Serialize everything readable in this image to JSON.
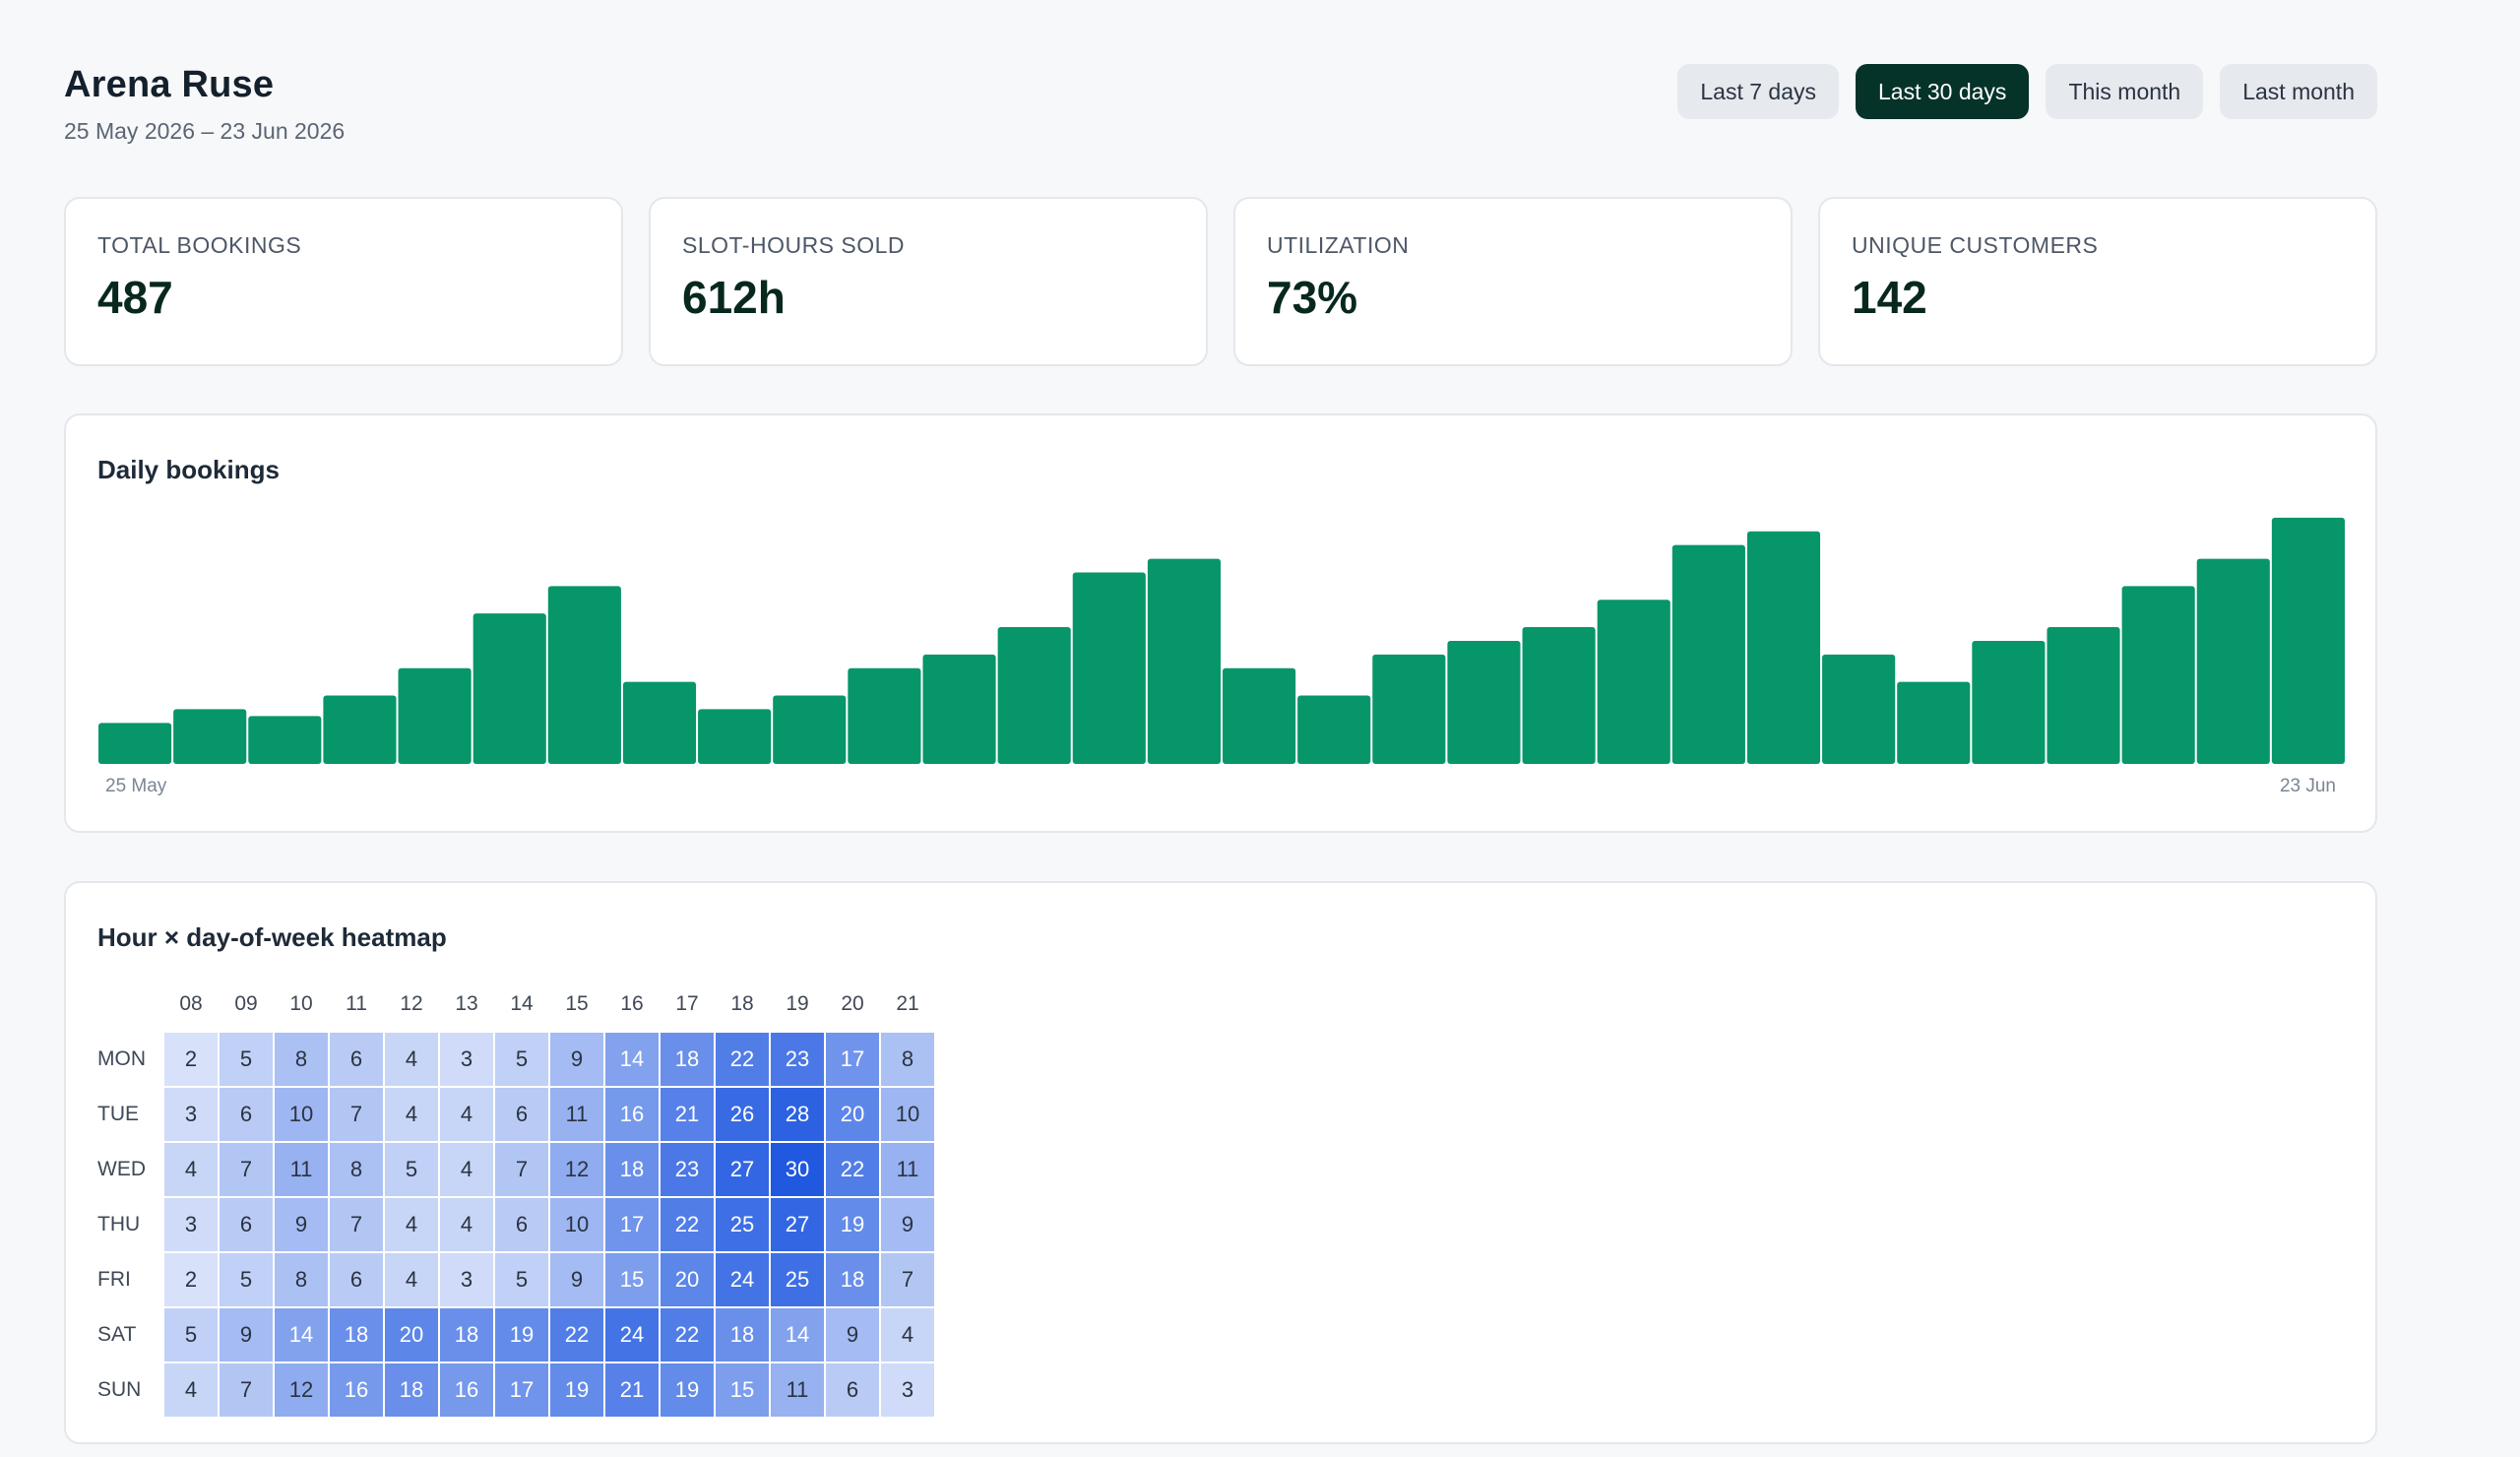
{
  "header": {
    "title": "Arena Ruse",
    "date_range": "25 May 2026 – 23 Jun 2026"
  },
  "range_buttons": [
    {
      "label": "Last 7 days",
      "active": false
    },
    {
      "label": "Last 30 days",
      "active": true
    },
    {
      "label": "This month",
      "active": false
    },
    {
      "label": "Last month",
      "active": false
    }
  ],
  "kpis": [
    {
      "label": "TOTAL BOOKINGS",
      "value": "487"
    },
    {
      "label": "SLOT-HOURS SOLD",
      "value": "612h"
    },
    {
      "label": "UTILIZATION",
      "value": "73%"
    },
    {
      "label": "UNIQUE CUSTOMERS",
      "value": "142"
    }
  ],
  "colors": {
    "bar": "#079669",
    "active_button": "#05332a",
    "heat_low": "#e8eefc",
    "heat_high": "#2058e0"
  },
  "chart_data": [
    {
      "type": "bar",
      "title": "Daily bookings",
      "x_start_label": "25 May",
      "x_end_label": "23 Jun",
      "values": [
        3,
        4,
        3.5,
        5,
        7,
        11,
        13,
        6,
        4,
        5,
        7,
        8,
        10,
        14,
        15,
        7,
        5,
        8,
        9,
        10,
        12,
        16,
        17,
        8,
        6,
        9,
        10,
        13,
        15,
        18
      ],
      "ylim": [
        0,
        19
      ]
    },
    {
      "type": "heatmap",
      "title": "Hour × day-of-week heatmap",
      "columns": [
        "08",
        "09",
        "10",
        "11",
        "12",
        "13",
        "14",
        "15",
        "16",
        "17",
        "18",
        "19",
        "20",
        "21"
      ],
      "rows": [
        {
          "label": "MON",
          "values": [
            2,
            5,
            8,
            6,
            4,
            3,
            5,
            9,
            14,
            18,
            22,
            23,
            17,
            8
          ]
        },
        {
          "label": "TUE",
          "values": [
            3,
            6,
            10,
            7,
            4,
            4,
            6,
            11,
            16,
            21,
            26,
            28,
            20,
            10
          ]
        },
        {
          "label": "WED",
          "values": [
            4,
            7,
            11,
            8,
            5,
            4,
            7,
            12,
            18,
            23,
            27,
            30,
            22,
            11
          ]
        },
        {
          "label": "THU",
          "values": [
            3,
            6,
            9,
            7,
            4,
            4,
            6,
            10,
            17,
            22,
            25,
            27,
            19,
            9
          ]
        },
        {
          "label": "FRI",
          "values": [
            2,
            5,
            8,
            6,
            4,
            3,
            5,
            9,
            15,
            20,
            24,
            25,
            18,
            7
          ]
        },
        {
          "label": "SAT",
          "values": [
            5,
            9,
            14,
            18,
            20,
            18,
            19,
            22,
            24,
            22,
            18,
            14,
            9,
            4
          ]
        },
        {
          "label": "SUN",
          "values": [
            4,
            7,
            12,
            16,
            18,
            16,
            17,
            19,
            21,
            19,
            15,
            11,
            6,
            3
          ]
        }
      ]
    }
  ]
}
